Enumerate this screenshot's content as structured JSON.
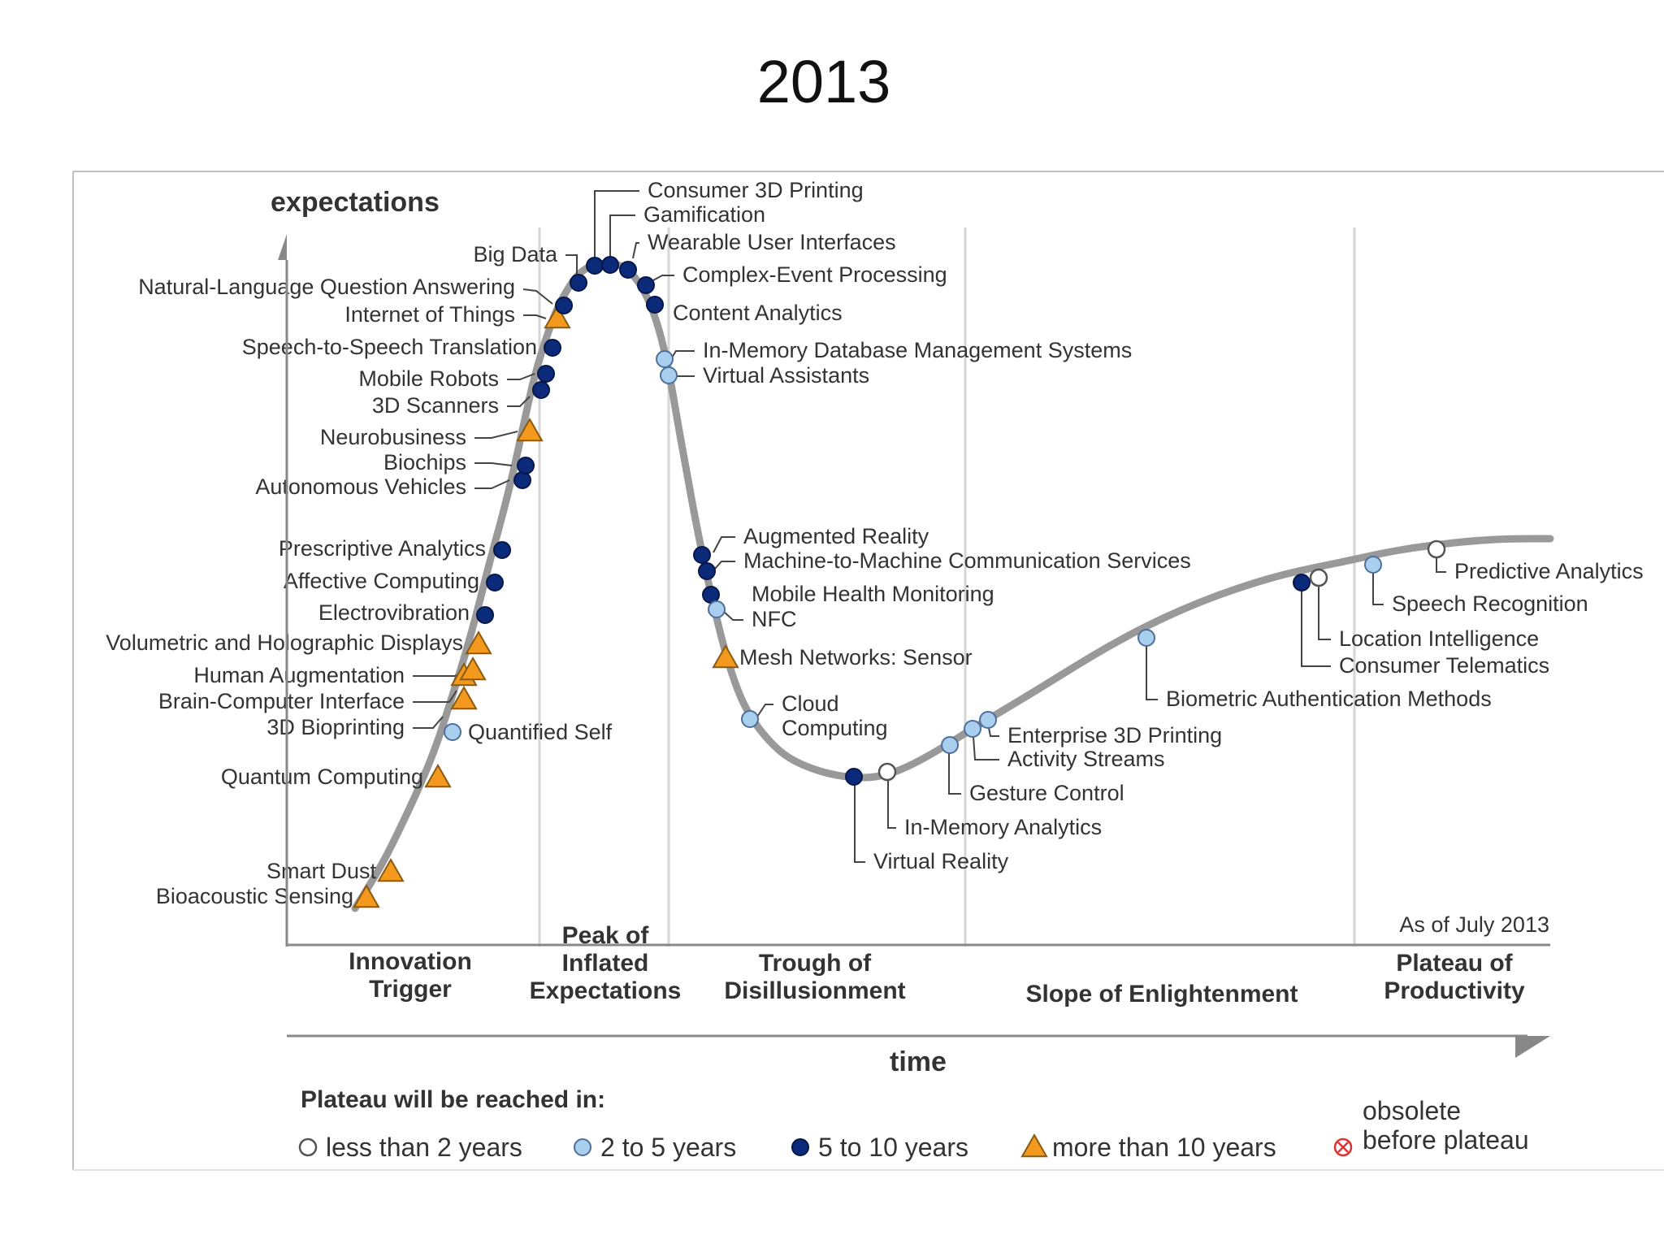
{
  "title": "2013",
  "chart_data": {
    "type": "scatter",
    "y_axis_label": "expectations",
    "x_axis_label": "time",
    "as_of": "As of July 2013",
    "phases": [
      "Innovation\nTrigger",
      "Peak of\nInflated\nExpectations",
      "Trough of\nDisillusionment",
      "Slope of Enlightenment",
      "Plateau of\nProductivity"
    ],
    "legend_title": "Plateau will be reached in:",
    "legend": [
      {
        "symbol": "open",
        "label": "less than 2 years"
      },
      {
        "symbol": "light",
        "label": "2 to 5 years"
      },
      {
        "symbol": "dark",
        "label": "5 to 10 years"
      },
      {
        "symbol": "triangle",
        "label": "more than 10 years"
      },
      {
        "symbol": "obsolete",
        "label": "obsolete\nbefore plateau"
      }
    ],
    "colors": {
      "curve": "#999999",
      "dark": "#0b2a7a",
      "light": "#a9cfee",
      "triangle": "#f39a1e",
      "obsolete": "#e03030"
    },
    "technologies": [
      {
        "name": "Bioacoustic Sensing",
        "symbol": "triangle",
        "phase": "Innovation Trigger"
      },
      {
        "name": "Smart Dust",
        "symbol": "triangle",
        "phase": "Innovation Trigger"
      },
      {
        "name": "Quantum Computing",
        "symbol": "triangle",
        "phase": "Innovation Trigger"
      },
      {
        "name": "3D Bioprinting",
        "symbol": "triangle",
        "phase": "Innovation Trigger"
      },
      {
        "name": "Quantified Self",
        "symbol": "light",
        "phase": "Innovation Trigger"
      },
      {
        "name": "Brain-Computer Interface",
        "symbol": "triangle",
        "phase": "Innovation Trigger"
      },
      {
        "name": "Human Augmentation",
        "symbol": "triangle",
        "phase": "Innovation Trigger"
      },
      {
        "name": "Volumetric and Holographic Displays",
        "symbol": "triangle",
        "phase": "Innovation Trigger"
      },
      {
        "name": "Electrovibration",
        "symbol": "dark",
        "phase": "Innovation Trigger"
      },
      {
        "name": "Affective Computing",
        "symbol": "dark",
        "phase": "Innovation Trigger"
      },
      {
        "name": "Prescriptive Analytics",
        "symbol": "dark",
        "phase": "Innovation Trigger"
      },
      {
        "name": "Autonomous Vehicles",
        "symbol": "dark",
        "phase": "Innovation Trigger"
      },
      {
        "name": "Biochips",
        "symbol": "dark",
        "phase": "Innovation Trigger"
      },
      {
        "name": "Neurobusiness",
        "symbol": "triangle",
        "phase": "Innovation Trigger"
      },
      {
        "name": "3D Scanners",
        "symbol": "dark",
        "phase": "Innovation Trigger"
      },
      {
        "name": "Mobile Robots",
        "symbol": "dark",
        "phase": "Innovation Trigger"
      },
      {
        "name": "Speech-to-Speech Translation",
        "symbol": "dark",
        "phase": "Innovation Trigger"
      },
      {
        "name": "Internet of Things",
        "symbol": "triangle",
        "phase": "Peak of Inflated Expectations"
      },
      {
        "name": "Natural-Language Question Answering",
        "symbol": "dark",
        "phase": "Peak of Inflated Expectations"
      },
      {
        "name": "Big Data",
        "symbol": "dark",
        "phase": "Peak of Inflated Expectations"
      },
      {
        "name": "Consumer 3D Printing",
        "symbol": "dark",
        "phase": "Peak of Inflated Expectations"
      },
      {
        "name": "Gamification",
        "symbol": "dark",
        "phase": "Peak of Inflated Expectations"
      },
      {
        "name": "Wearable User Interfaces",
        "symbol": "dark",
        "phase": "Peak of Inflated Expectations"
      },
      {
        "name": "Complex-Event Processing",
        "symbol": "dark",
        "phase": "Peak of Inflated Expectations"
      },
      {
        "name": "Content Analytics",
        "symbol": "dark",
        "phase": "Peak of Inflated Expectations"
      },
      {
        "name": "In-Memory Database Management Systems",
        "symbol": "light",
        "phase": "Trough of Disillusionment"
      },
      {
        "name": "Virtual Assistants",
        "symbol": "light",
        "phase": "Trough of Disillusionment"
      },
      {
        "name": "Augmented Reality",
        "symbol": "dark",
        "phase": "Trough of Disillusionment"
      },
      {
        "name": "Machine-to-Machine Communication Services",
        "symbol": "dark",
        "phase": "Trough of Disillusionment"
      },
      {
        "name": "Mobile Health Monitoring",
        "symbol": "dark",
        "phase": "Trough of Disillusionment"
      },
      {
        "name": "NFC",
        "symbol": "light",
        "phase": "Trough of Disillusionment"
      },
      {
        "name": "Mesh Networks: Sensor",
        "symbol": "triangle",
        "phase": "Trough of Disillusionment"
      },
      {
        "name": "Cloud\nComputing",
        "symbol": "light",
        "phase": "Trough of Disillusionment"
      },
      {
        "name": "Virtual Reality",
        "symbol": "dark",
        "phase": "Trough of Disillusionment"
      },
      {
        "name": "In-Memory Analytics",
        "symbol": "open",
        "phase": "Trough of Disillusionment"
      },
      {
        "name": "Gesture Control",
        "symbol": "light",
        "phase": "Slope of Enlightenment"
      },
      {
        "name": "Activity Streams",
        "symbol": "light",
        "phase": "Slope of Enlightenment"
      },
      {
        "name": "Enterprise 3D Printing",
        "symbol": "light",
        "phase": "Slope of Enlightenment"
      },
      {
        "name": "Biometric Authentication Methods",
        "symbol": "light",
        "phase": "Slope of Enlightenment"
      },
      {
        "name": "Consumer Telematics",
        "symbol": "dark",
        "phase": "Slope of Enlightenment"
      },
      {
        "name": "Location Intelligence",
        "symbol": "open",
        "phase": "Slope of Enlightenment"
      },
      {
        "name": "Speech Recognition",
        "symbol": "light",
        "phase": "Plateau of Productivity"
      },
      {
        "name": "Predictive Analytics",
        "symbol": "open",
        "phase": "Plateau of Productivity"
      }
    ]
  }
}
